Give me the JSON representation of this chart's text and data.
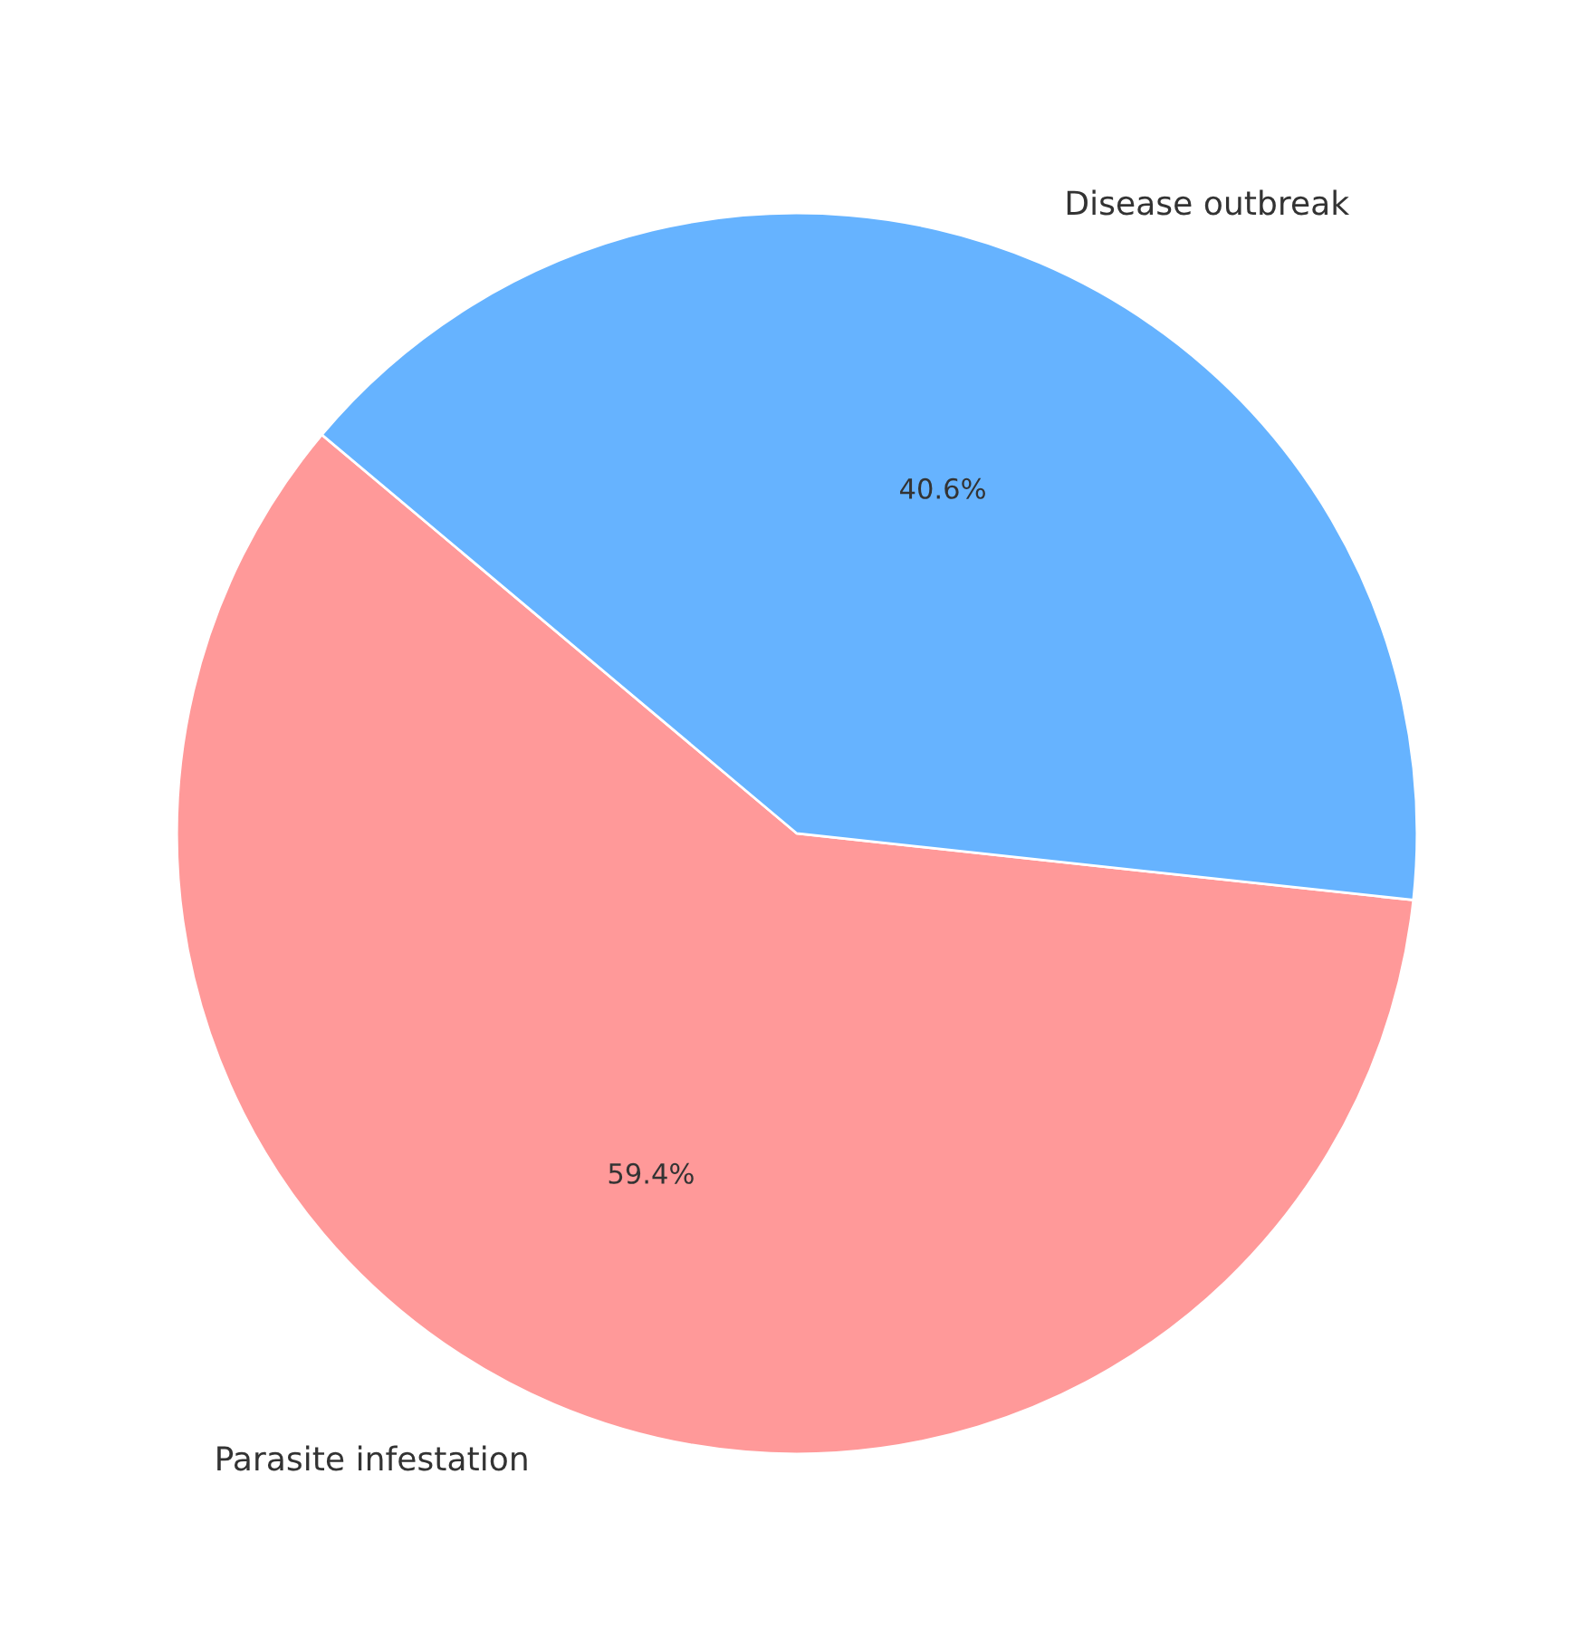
{
  "chart_data": {
    "type": "pie",
    "categories": [
      "Parasite infestation",
      "Disease outbreak"
    ],
    "values": [
      59.4,
      40.6
    ],
    "colors": [
      "#ff9999",
      "#66b3ff"
    ],
    "value_labels": [
      "59.4%",
      "40.6%"
    ]
  }
}
